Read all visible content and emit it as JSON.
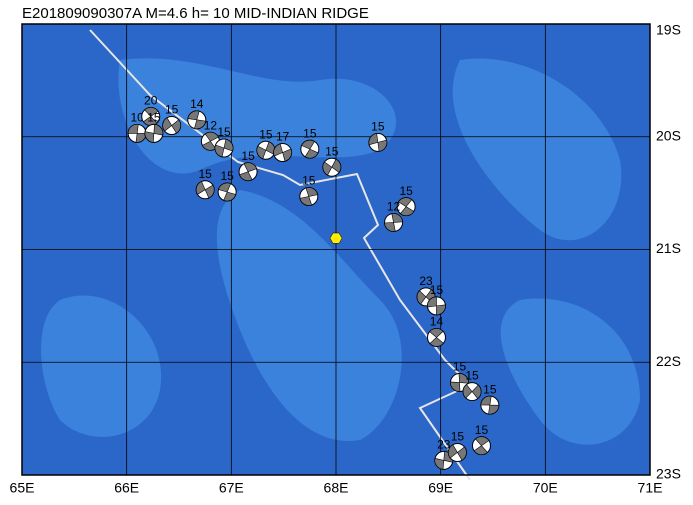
{
  "map_data": {
    "title": "E201809090307A  M=4.6  h= 10 MID-INDIAN RIDGE",
    "lonlim": [
      65,
      71
    ],
    "latlim": [
      19,
      23
    ],
    "lon_ticks": [
      {
        "value": 65,
        "label": "65E"
      },
      {
        "value": 66,
        "label": "66E"
      },
      {
        "value": 67,
        "label": "67E"
      },
      {
        "value": 68,
        "label": "68E"
      },
      {
        "value": 69,
        "label": "69E"
      },
      {
        "value": 70,
        "label": "70E"
      },
      {
        "value": 71,
        "label": "71E"
      }
    ],
    "lat_ticks": [
      {
        "value": 19,
        "label": "19S"
      },
      {
        "value": 20,
        "label": "20S"
      },
      {
        "value": 21,
        "label": "21S"
      },
      {
        "value": 22,
        "label": "22S"
      },
      {
        "value": 23,
        "label": "23S"
      }
    ],
    "epicenter": {
      "lon": 68.0,
      "lat": 20.9
    },
    "events": [
      {
        "lon": 66.1,
        "lat": 19.97,
        "depth": 10
      },
      {
        "lon": 66.23,
        "lat": 19.82,
        "depth": 20
      },
      {
        "lon": 66.26,
        "lat": 19.97,
        "depth": 15
      },
      {
        "lon": 66.43,
        "lat": 19.9,
        "depth": 15
      },
      {
        "lon": 66.67,
        "lat": 19.85,
        "depth": 14
      },
      {
        "lon": 66.8,
        "lat": 20.04,
        "depth": 12
      },
      {
        "lon": 66.93,
        "lat": 20.1,
        "depth": 15
      },
      {
        "lon": 66.75,
        "lat": 20.47,
        "depth": 15
      },
      {
        "lon": 66.96,
        "lat": 20.49,
        "depth": 15
      },
      {
        "lon": 67.16,
        "lat": 20.31,
        "depth": 15
      },
      {
        "lon": 67.33,
        "lat": 20.12,
        "depth": 15
      },
      {
        "lon": 67.49,
        "lat": 20.14,
        "depth": 17
      },
      {
        "lon": 67.75,
        "lat": 20.11,
        "depth": 15
      },
      {
        "lon": 67.74,
        "lat": 20.53,
        "depth": 15
      },
      {
        "lon": 67.96,
        "lat": 20.27,
        "depth": 15
      },
      {
        "lon": 68.4,
        "lat": 20.05,
        "depth": 15
      },
      {
        "lon": 68.67,
        "lat": 20.62,
        "depth": 15
      },
      {
        "lon": 68.55,
        "lat": 20.76,
        "depth": 12
      },
      {
        "lon": 68.86,
        "lat": 21.42,
        "depth": 23
      },
      {
        "lon": 68.96,
        "lat": 21.5,
        "depth": 15
      },
      {
        "lon": 68.96,
        "lat": 21.78,
        "depth": 14
      },
      {
        "lon": 69.18,
        "lat": 22.18,
        "depth": 15
      },
      {
        "lon": 69.3,
        "lat": 22.26,
        "depth": 15
      },
      {
        "lon": 69.47,
        "lat": 22.38,
        "depth": 15
      },
      {
        "lon": 69.39,
        "lat": 22.74,
        "depth": 15
      },
      {
        "lon": 69.03,
        "lat": 22.87,
        "depth": 23
      },
      {
        "lon": 69.16,
        "lat": 22.8,
        "depth": 15
      }
    ]
  }
}
